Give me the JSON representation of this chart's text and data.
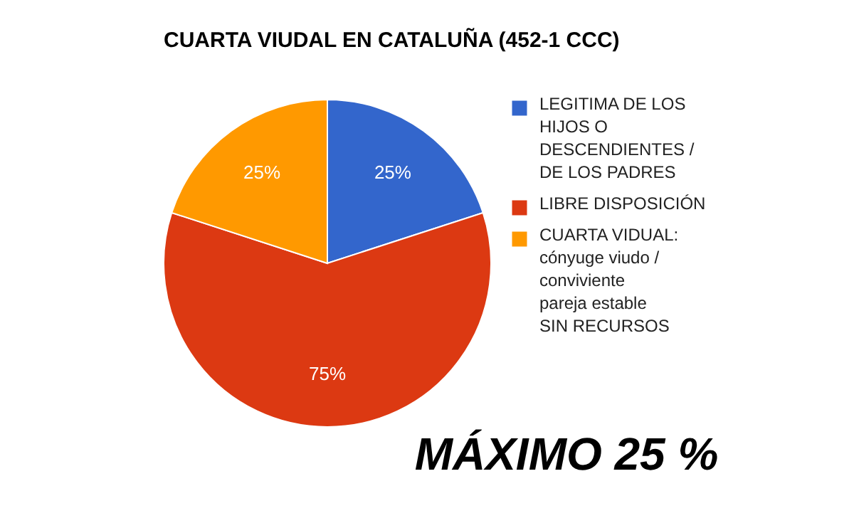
{
  "chart_data": {
    "type": "pie",
    "title": "CUARTA VIUDAL EN CATALUÑA (452-1 CCC)",
    "categories": [
      "LEGITIMA DE LOS HIJOS O DESCENDIENTES / DE LOS PADRES",
      "LIBRE DISPOSICIÓN",
      "CUARTA VIDUAL: cónyuge viudo / conviviente pareja estable SIN RECURSOS"
    ],
    "values": [
      25,
      75,
      25
    ],
    "colors": [
      "#3366cc",
      "#dc3912",
      "#ff9900"
    ],
    "value_labels": [
      "25%",
      "75%",
      "25%"
    ],
    "legend": "right",
    "annotations": [
      "MÁXIMO 25 %"
    ]
  }
}
